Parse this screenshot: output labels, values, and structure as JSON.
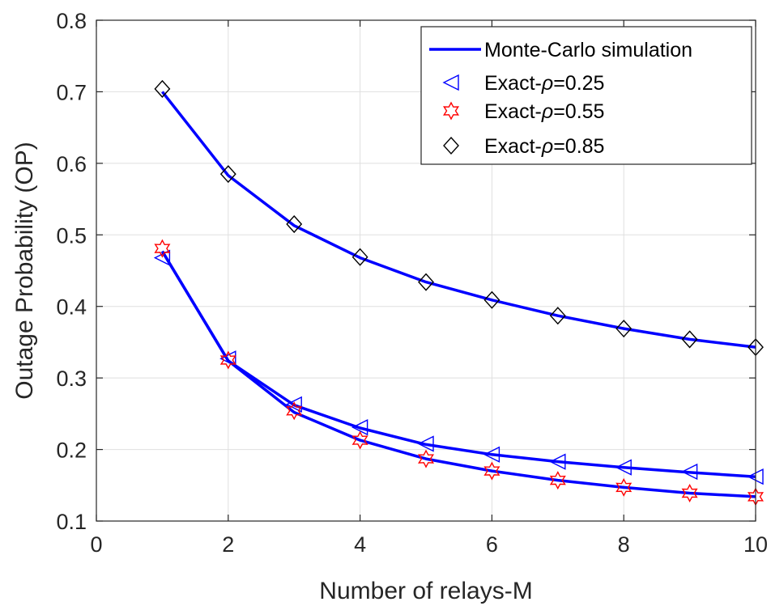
{
  "chart_data": {
    "type": "line",
    "title": "",
    "xlabel": "Number of relays-M",
    "ylabel": "Outage Probability (OP)",
    "xlim": [
      0,
      10
    ],
    "ylim": [
      0.1,
      0.8
    ],
    "xticks": [
      0,
      2,
      4,
      6,
      8,
      10
    ],
    "yticks": [
      0.1,
      0.2,
      0.3,
      0.4,
      0.5,
      0.6,
      0.7,
      0.8
    ],
    "grid": true,
    "legend_position": "top-right",
    "x": [
      1,
      2,
      3,
      4,
      5,
      6,
      7,
      8,
      9,
      10
    ],
    "line_series": {
      "name": "Monte-Carlo simulation",
      "color": "#0000ff",
      "curves": [
        [
          0.477,
          0.324,
          0.262,
          0.23,
          0.207,
          0.193,
          0.183,
          0.175,
          0.168,
          0.162
        ],
        [
          0.477,
          0.324,
          0.252,
          0.213,
          0.187,
          0.17,
          0.157,
          0.147,
          0.139,
          0.134
        ],
        [
          0.7,
          0.583,
          0.513,
          0.468,
          0.434,
          0.409,
          0.387,
          0.369,
          0.354,
          0.343
        ]
      ]
    },
    "series": [
      {
        "name": "Exact-ρ=0.25",
        "legend_prefix": "Exact-",
        "legend_symbol": "ρ",
        "legend_value": "=0.25",
        "marker": "triangle-left",
        "color": "#0000ff",
        "values": [
          0.468,
          0.327,
          0.263,
          0.231,
          0.208,
          0.193,
          0.183,
          0.175,
          0.169,
          0.162
        ]
      },
      {
        "name": "Exact-ρ=0.55",
        "legend_prefix": "Exact-",
        "legend_symbol": "ρ",
        "legend_value": "=0.55",
        "marker": "hexagram",
        "color": "#ff0000",
        "values": [
          0.481,
          0.325,
          0.254,
          0.213,
          0.187,
          0.17,
          0.157,
          0.147,
          0.139,
          0.134
        ]
      },
      {
        "name": "Exact-ρ=0.85",
        "legend_prefix": "Exact-",
        "legend_symbol": "ρ",
        "legend_value": "=0.85",
        "marker": "diamond",
        "color": "#000000",
        "values": [
          0.704,
          0.585,
          0.515,
          0.469,
          0.434,
          0.409,
          0.387,
          0.369,
          0.354,
          0.343
        ]
      }
    ]
  }
}
